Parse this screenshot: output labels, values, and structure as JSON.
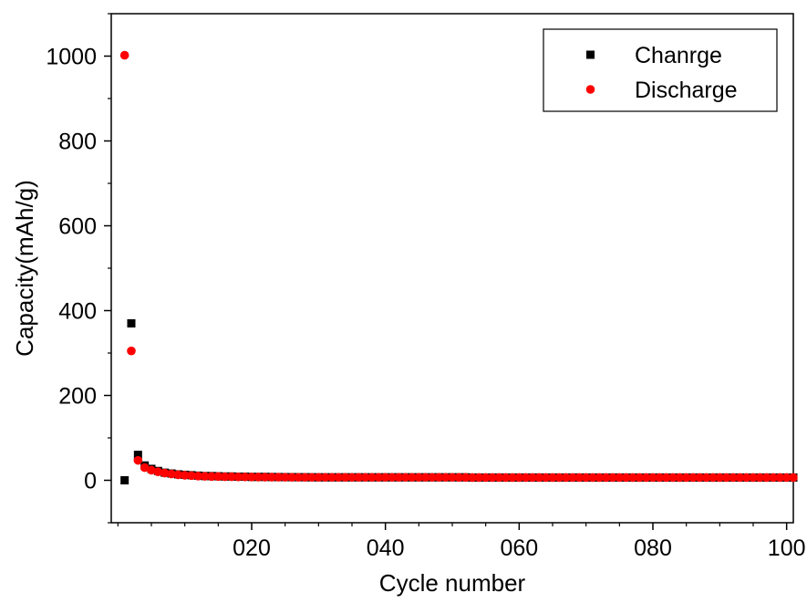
{
  "chart_data": {
    "type": "scatter",
    "xlabel": "Cycle number",
    "ylabel": "Capacity(mAh/g)",
    "xlim": [
      -1,
      101
    ],
    "ylim": [
      -100,
      1100
    ],
    "x_ticks": [
      20,
      40,
      60,
      80,
      100
    ],
    "x_tick_labels": [
      "020",
      "040",
      "060",
      "080",
      "100"
    ],
    "x_minor_step": 5,
    "y_ticks": [
      0,
      200,
      400,
      600,
      800,
      1000
    ],
    "y_tick_labels": [
      "0",
      "200",
      "400",
      "600",
      "800",
      "1000"
    ],
    "y_minor_step": 100,
    "grid": false,
    "legend_position": "top-right",
    "series": [
      {
        "name": "Chanrge",
        "marker": "square",
        "color": "#000000",
        "x": [
          1,
          2,
          3,
          4,
          5,
          6,
          7,
          8,
          9,
          10,
          11,
          12,
          13,
          14,
          15,
          16,
          17,
          18,
          19,
          20,
          21,
          22,
          23,
          24,
          25,
          26,
          27,
          28,
          29,
          30,
          31,
          32,
          33,
          34,
          35,
          36,
          37,
          38,
          39,
          40,
          41,
          42,
          43,
          44,
          45,
          46,
          47,
          48,
          49,
          50,
          51,
          52,
          53,
          54,
          55,
          56,
          57,
          58,
          59,
          60,
          61,
          62,
          63,
          64,
          65,
          66,
          67,
          68,
          69,
          70,
          71,
          72,
          73,
          74,
          75,
          76,
          77,
          78,
          79,
          80,
          81,
          82,
          83,
          84,
          85,
          86,
          87,
          88,
          89,
          90,
          91,
          92,
          93,
          94,
          95,
          96,
          97,
          98,
          99,
          100,
          101
        ],
        "values": [
          0,
          370,
          60,
          35,
          27,
          22,
          18,
          16,
          14,
          13,
          12,
          11,
          10,
          10,
          9.5,
          9,
          9,
          8.5,
          8.5,
          8,
          8,
          8,
          7.8,
          7.6,
          7.5,
          7.4,
          7.3,
          7.2,
          7.1,
          7,
          7,
          7,
          7,
          7,
          7,
          7,
          7,
          7,
          7,
          7,
          7,
          7,
          7,
          7,
          7,
          7,
          7,
          7,
          7,
          7,
          7,
          7,
          6.5,
          6.5,
          6.5,
          6.5,
          6.5,
          6.5,
          6.5,
          6.5,
          6.5,
          6.5,
          6.5,
          6.5,
          6.5,
          6.5,
          6.5,
          6.5,
          6.5,
          6.5,
          6.5,
          6.5,
          6.5,
          6.5,
          6.5,
          6.5,
          6.5,
          6.5,
          6.5,
          6.5,
          6.5,
          6.5,
          6.5,
          6.5,
          6.5,
          6.5,
          6.5,
          6.5,
          6.5,
          6.5,
          6.5,
          6.5,
          6.5,
          6.5,
          6.5,
          6.5,
          6.5,
          6.5,
          6.5,
          6.5,
          6.5
        ]
      },
      {
        "name": "Discharge",
        "marker": "circle",
        "color": "#ff0000",
        "x": [
          1,
          2,
          3,
          4,
          5,
          6,
          7,
          8,
          9,
          10,
          11,
          12,
          13,
          14,
          15,
          16,
          17,
          18,
          19,
          20,
          21,
          22,
          23,
          24,
          25,
          26,
          27,
          28,
          29,
          30,
          31,
          32,
          33,
          34,
          35,
          36,
          37,
          38,
          39,
          40,
          41,
          42,
          43,
          44,
          45,
          46,
          47,
          48,
          49,
          50,
          51,
          52,
          53,
          54,
          55,
          56,
          57,
          58,
          59,
          60,
          61,
          62,
          63,
          64,
          65,
          66,
          67,
          68,
          69,
          70,
          71,
          72,
          73,
          74,
          75,
          76,
          77,
          78,
          79,
          80,
          81,
          82,
          83,
          84,
          85,
          86,
          87,
          88,
          89,
          90,
          91,
          92,
          93,
          94,
          95,
          96,
          97,
          98,
          99,
          100,
          101
        ],
        "values": [
          1002,
          305,
          47,
          30,
          24,
          20,
          17,
          15,
          13,
          12,
          11,
          10,
          9.5,
          9,
          9,
          8.5,
          8.5,
          8,
          8,
          7.8,
          7.6,
          7.5,
          7.4,
          7.3,
          7.2,
          7.1,
          7,
          7,
          7,
          7,
          7,
          7,
          7,
          7,
          7,
          7,
          7,
          7,
          7,
          7,
          7,
          7,
          7,
          7,
          7,
          7,
          7,
          7,
          7,
          7,
          6.8,
          6.8,
          6.5,
          6.5,
          6.5,
          6.5,
          6.5,
          6.5,
          6.5,
          6.5,
          6.5,
          6.5,
          6.5,
          6.5,
          6.5,
          6.5,
          6.5,
          6.5,
          6.5,
          6.5,
          6.5,
          6.5,
          6.5,
          6.5,
          6.5,
          6.5,
          6.5,
          6.5,
          6.5,
          6.5,
          6.5,
          6.5,
          6.5,
          6.5,
          6.5,
          6.5,
          6.5,
          6.5,
          6.5,
          6.5,
          6.5,
          6.5,
          6.5,
          6.5,
          6.5,
          6.5,
          6.5,
          6.5,
          6.5,
          6.5,
          6.5
        ]
      }
    ]
  }
}
